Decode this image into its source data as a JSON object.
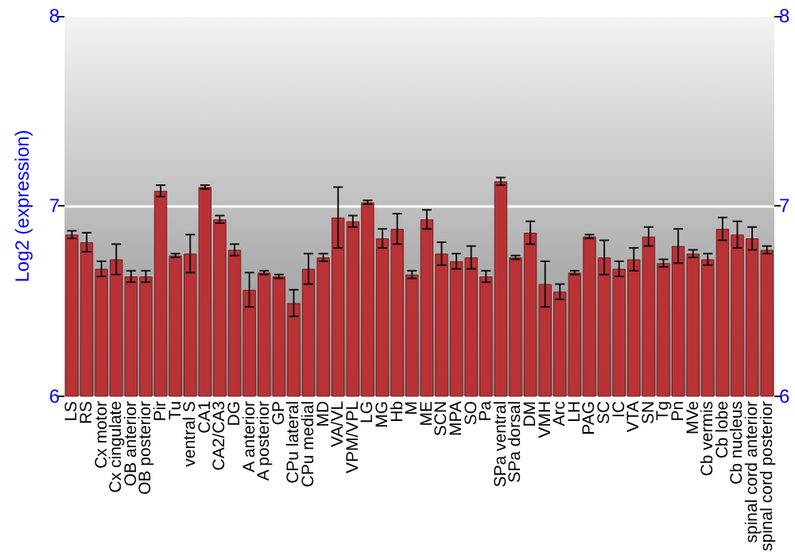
{
  "chart_data": {
    "type": "bar",
    "ylabel": "Log2 (expression)",
    "categories": [
      "LS",
      "RS",
      "Cx motor",
      "Cx cingulate",
      "OB anterior",
      "OB posterior",
      "Pir",
      "Tu",
      "ventral S",
      "CA1",
      "CA2/CA3",
      "DG",
      "A anterior",
      "A posterior",
      "GP",
      "CPu lateral",
      "CPu medial",
      "MD",
      "VA/VL",
      "VPM/VPL",
      "LG",
      "MG",
      "Hb",
      "M",
      "ME",
      "SCN",
      "MPA",
      "SO",
      "Pa",
      "SPa ventral",
      "SPa dorsal",
      "DM",
      "VMH",
      "Arc",
      "LH",
      "PAG",
      "SC",
      "IC",
      "VTA",
      "SN",
      "Tg",
      "Pn",
      "MVe",
      "Cb vermis",
      "Cb lobe",
      "Cb nucleus",
      "spinal cord anterior",
      "spinal cord posterior"
    ],
    "series": [
      {
        "color": "#b83236",
        "values": [
          6.85,
          6.81,
          6.67,
          6.72,
          6.63,
          6.63,
          7.08,
          6.74,
          6.75,
          7.1,
          6.93,
          6.77,
          6.56,
          6.65,
          6.63,
          6.49,
          6.67,
          6.73,
          6.94,
          6.92,
          7.02,
          6.83,
          6.88,
          6.64,
          6.93,
          6.75,
          6.71,
          6.73,
          6.63,
          7.13,
          6.73,
          6.86,
          6.59,
          6.55,
          6.65,
          6.84,
          6.73,
          6.67,
          6.72,
          6.84,
          6.7,
          6.79,
          6.75,
          6.72,
          6.88,
          6.85,
          6.83,
          6.77
        ],
        "errors": [
          0.02,
          0.05,
          0.04,
          0.08,
          0.03,
          0.03,
          0.03,
          0.01,
          0.1,
          0.01,
          0.02,
          0.03,
          0.09,
          0.01,
          0.01,
          0.07,
          0.08,
          0.02,
          0.16,
          0.03,
          0.01,
          0.05,
          0.08,
          0.02,
          0.05,
          0.06,
          0.04,
          0.06,
          0.03,
          0.02,
          0.01,
          0.06,
          0.12,
          0.04,
          0.01,
          0.01,
          0.09,
          0.04,
          0.06,
          0.05,
          0.02,
          0.09,
          0.02,
          0.03,
          0.06,
          0.07,
          0.06,
          0.02
        ]
      }
    ],
    "ylim": [
      6,
      8
    ],
    "yticks": [
      6,
      7,
      8
    ],
    "y2lim": [
      6,
      8
    ],
    "y2ticks": [
      6,
      7,
      8
    ],
    "grid": "y"
  }
}
